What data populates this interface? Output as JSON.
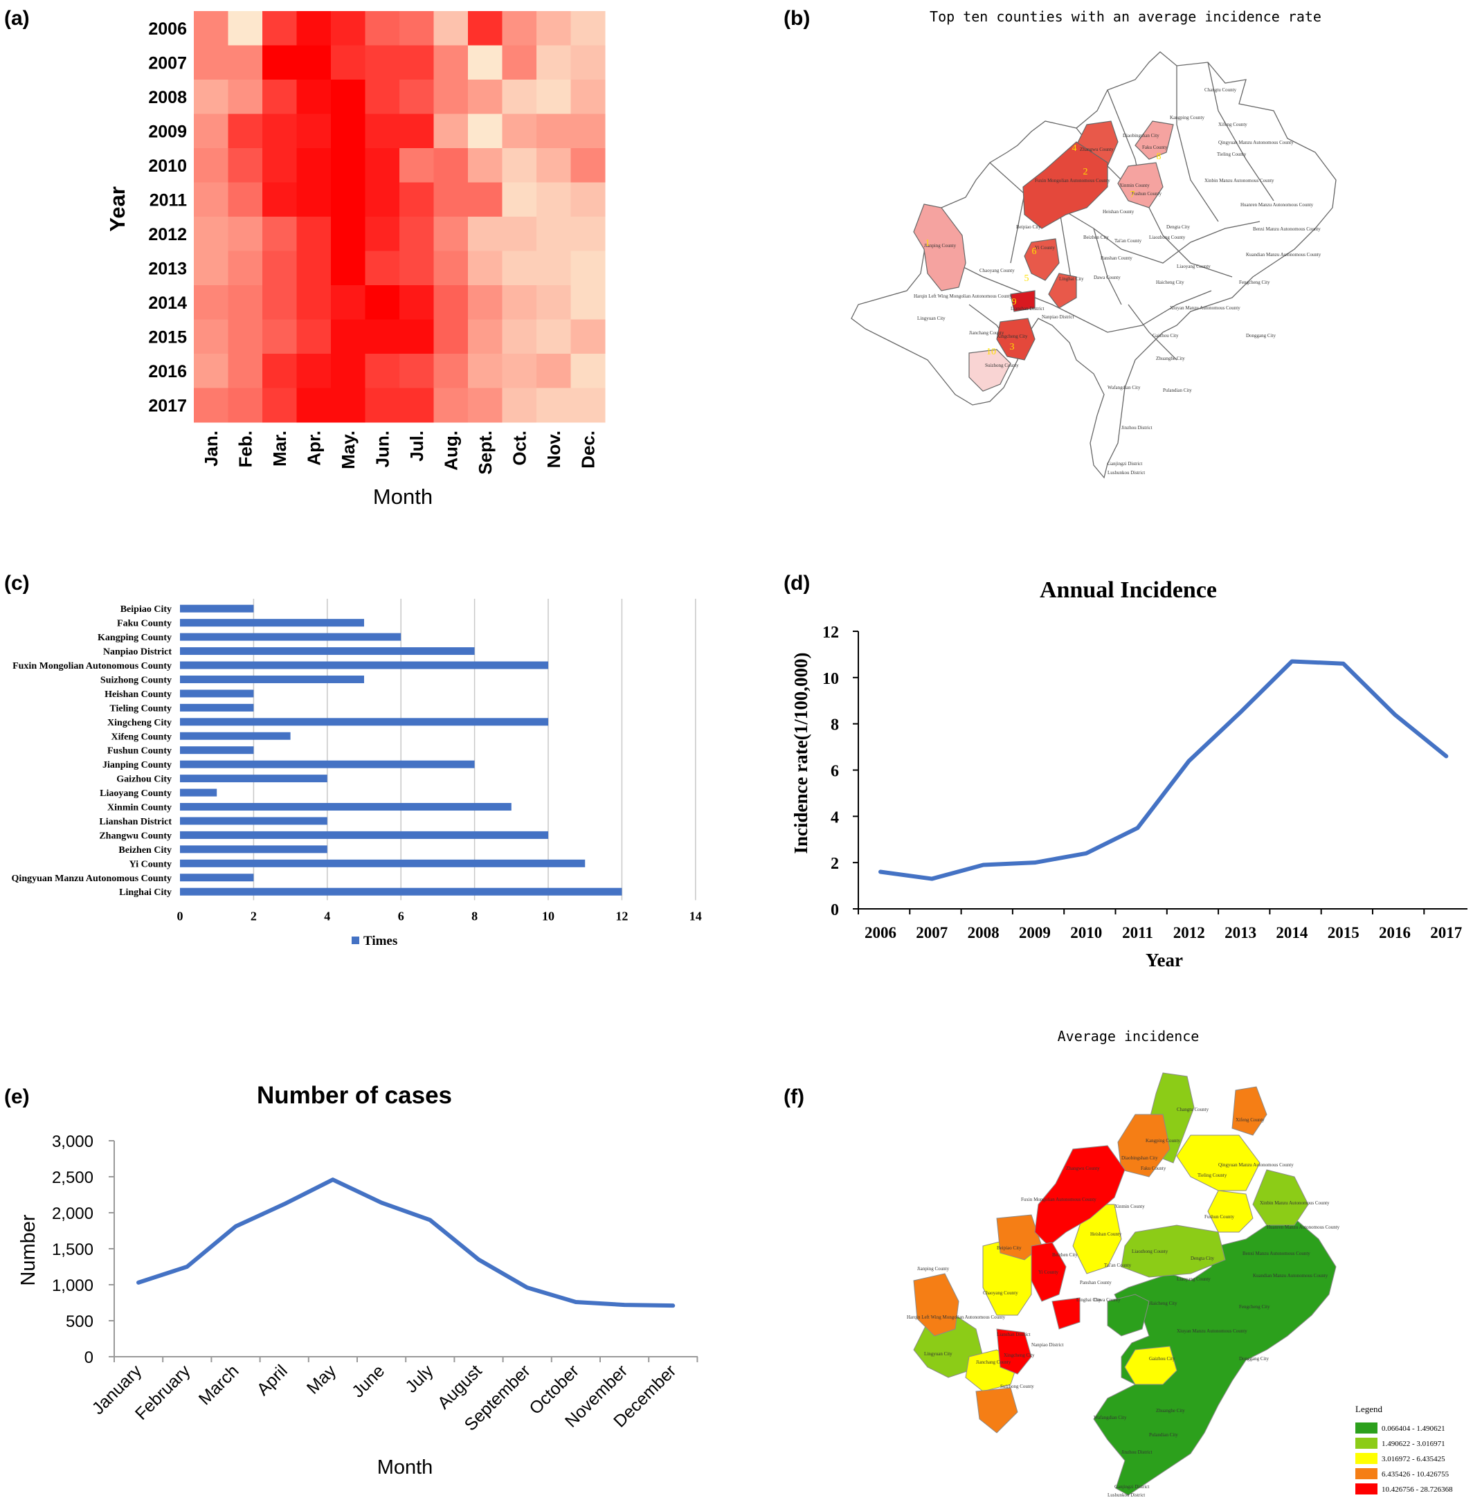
{
  "colors": {
    "heat_low": "#fdf3d8",
    "heat_high": "#ff0000",
    "map_border": "#666666",
    "bar_blue": "#4472c4",
    "line_blue": "#4472c4",
    "legend_colors": [
      "#2ca01c",
      "#8ccc17",
      "#ffff00",
      "#f57e15",
      "#ff0000"
    ]
  },
  "panels": {
    "a": {
      "tag": "(a)",
      "xlabel": "Month",
      "ylabel": "Year"
    },
    "b": {
      "tag": "(b)",
      "title": "Top ten counties with an average incidence rate",
      "labels": [
        "Changtu County",
        "Xifeng County",
        "Kangping County",
        "Diaobingshan City",
        "Faku County",
        "Qingyuan Manzu Autonomous County",
        "Tieling County",
        "Zhangwu County",
        "Fuxin Mongolian Autonomous County",
        "Xinmin County",
        "Xinbin Manzu Autonomous County",
        "Fushun County",
        "Huanren Manzu Autonomous County",
        "Heishan County",
        "Beipiao City",
        "Beizhen City",
        "Tai'an County",
        "Liaozhong County",
        "Dengta City",
        "Benxi Manzu Autonomous County",
        "Jianping County",
        "Yi County",
        "Linghai City",
        "Liaoyang County",
        "Kuandian Manzu Autonomous County",
        "Chaoyang County",
        "Panshan County",
        "Dawa County",
        "Haicheng City",
        "Fengcheng City",
        "Harqin Left Wing Mongolian Autonomous County",
        "Lianshan District",
        "Nanpiao District",
        "Lingyuan City",
        "Jianchang County",
        "Xiuyan Manzu Autonomous County",
        "Xingcheng City",
        "Gaizhou City",
        "Donggang City",
        "Suizhong County",
        "Zhuanghe City",
        "Wafangdian City",
        "Pulandian City",
        "Jinzhou District",
        "Ganjingzi District",
        "Lushunkou District"
      ],
      "ranks": [
        "1",
        "2",
        "3",
        "4",
        "5",
        "6",
        "7",
        "8",
        "9",
        "10"
      ]
    },
    "c": {
      "tag": "(c)",
      "legend": "Times"
    },
    "d": {
      "tag": "(d)",
      "title": "Annual Incidence",
      "xlabel": "Year",
      "ylabel": "Incidence rate(1/100,000)"
    },
    "e": {
      "tag": "(e)",
      "title": "Number of cases",
      "xlabel": "Month",
      "ylabel": "Number"
    },
    "f": {
      "tag": "(f)",
      "title": "Average incidence",
      "legend_title": "Legend",
      "legend_items": [
        "0.066404 - 1.490621",
        "1.490622 - 3.016971",
        "3.016972 - 6.435425",
        "6.435426 - 10.426755",
        "10.426756 - 28.726368"
      ]
    }
  },
  "chart_data": [
    {
      "id": "a",
      "type": "heatmap",
      "x": [
        "Jan.",
        "Feb.",
        "Mar.",
        "Apr.",
        "May.",
        "Jun.",
        "Jul.",
        "Aug.",
        "Sept.",
        "Oct.",
        "Nov.",
        "Dec."
      ],
      "y": [
        "2006",
        "2007",
        "2008",
        "2009",
        "2010",
        "2011",
        "2012",
        "2013",
        "2014",
        "2015",
        "2016",
        "2017"
      ],
      "values": [
        [
          0.45,
          0.05,
          0.75,
          0.95,
          0.85,
          0.6,
          0.55,
          0.2,
          0.8,
          0.4,
          0.25,
          0.15
        ],
        [
          0.45,
          0.45,
          1.0,
          1.0,
          0.8,
          0.75,
          0.75,
          0.45,
          0.05,
          0.45,
          0.15,
          0.2
        ],
        [
          0.3,
          0.4,
          0.75,
          0.95,
          1.0,
          0.75,
          0.65,
          0.45,
          0.35,
          0.15,
          0.1,
          0.25
        ],
        [
          0.4,
          0.75,
          0.85,
          0.9,
          1.0,
          0.85,
          0.85,
          0.3,
          0.05,
          0.3,
          0.35,
          0.35
        ],
        [
          0.45,
          0.65,
          0.85,
          0.95,
          1.0,
          0.9,
          0.5,
          0.55,
          0.3,
          0.15,
          0.25,
          0.45
        ],
        [
          0.4,
          0.55,
          0.9,
          0.95,
          1.0,
          0.9,
          0.75,
          0.55,
          0.55,
          0.1,
          0.15,
          0.2
        ],
        [
          0.35,
          0.4,
          0.6,
          0.8,
          1.0,
          0.85,
          0.7,
          0.45,
          0.2,
          0.2,
          0.15,
          0.15
        ],
        [
          0.35,
          0.45,
          0.65,
          0.8,
          1.0,
          0.75,
          0.7,
          0.5,
          0.25,
          0.15,
          0.15,
          0.1
        ],
        [
          0.45,
          0.5,
          0.65,
          0.8,
          0.9,
          1.0,
          0.9,
          0.6,
          0.4,
          0.25,
          0.2,
          0.1
        ],
        [
          0.4,
          0.5,
          0.6,
          0.75,
          0.95,
          0.95,
          0.95,
          0.6,
          0.35,
          0.2,
          0.15,
          0.25
        ],
        [
          0.35,
          0.5,
          0.8,
          0.9,
          0.95,
          0.75,
          0.7,
          0.5,
          0.3,
          0.25,
          0.3,
          0.1
        ],
        [
          0.5,
          0.55,
          0.75,
          0.95,
          0.95,
          0.8,
          0.8,
          0.45,
          0.4,
          0.2,
          0.15,
          0.15
        ]
      ],
      "xlabel": "Month",
      "ylabel": "Year"
    },
    {
      "id": "c",
      "type": "bar",
      "orientation": "horizontal",
      "categories": [
        "Beipiao City",
        "Faku County",
        "Kangping County",
        "Nanpiao District",
        "Fuxin Mongolian Autonomous County",
        "Suizhong County",
        "Heishan County",
        "Tieling County",
        "Xingcheng City",
        "Xifeng County",
        "Fushun County",
        "Jianping County",
        "Gaizhou City",
        "Liaoyang County",
        "Xinmin County",
        "Lianshan District",
        "Zhangwu County",
        "Beizhen City",
        "Yi County",
        "Qingyuan Manzu Autonomous County",
        "Linghai City"
      ],
      "series": [
        {
          "name": "Times",
          "values": [
            2,
            5,
            6,
            8,
            10,
            5,
            2,
            2,
            10,
            3,
            2,
            8,
            4,
            1,
            9,
            4,
            10,
            4,
            11,
            2,
            12
          ]
        }
      ],
      "xticks": [
        "0",
        "2",
        "4",
        "6",
        "8",
        "10",
        "12",
        "14"
      ],
      "xlim": [
        0,
        14
      ],
      "grid": true,
      "legend_position": "bottom"
    },
    {
      "id": "d",
      "type": "line",
      "title": "Annual Incidence",
      "x": [
        "2006",
        "2007",
        "2008",
        "2009",
        "2010",
        "2011",
        "2012",
        "2013",
        "2014",
        "2015",
        "2016",
        "2017"
      ],
      "values": [
        1.6,
        1.3,
        1.9,
        2.0,
        2.4,
        3.5,
        6.4,
        8.5,
        10.7,
        10.6,
        8.4,
        6.6
      ],
      "yticks": [
        "0",
        "2",
        "4",
        "6",
        "8",
        "10",
        "12"
      ],
      "ylim": [
        0,
        12
      ],
      "xlabel": "Year",
      "ylabel": "Incidence rate(1/100,000)",
      "grid": false
    },
    {
      "id": "e",
      "type": "line",
      "title": "Number of cases",
      "x": [
        "January",
        "February",
        "March",
        "April",
        "May",
        "June",
        "July",
        "August",
        "September",
        "October",
        "November",
        "December"
      ],
      "values": [
        1030,
        1250,
        1810,
        2120,
        2460,
        2140,
        1900,
        1350,
        960,
        760,
        720,
        710
      ],
      "yticks": [
        "0",
        "500",
        "1,000",
        "1,500",
        "2,000",
        "2,500",
        "3,000"
      ],
      "ylim": [
        0,
        3000
      ],
      "xlabel": "Month",
      "ylabel": "Number",
      "grid": false
    }
  ]
}
